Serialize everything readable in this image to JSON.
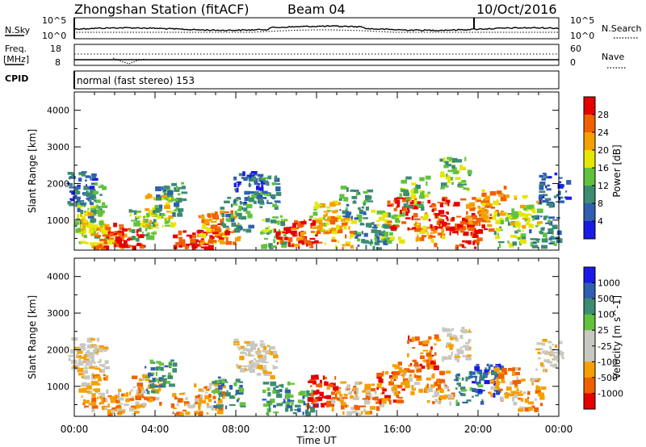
{
  "header": {
    "station": "Zhongshan Station (fitACF)",
    "beam": "Beam 04",
    "date": "10/Oct/2016"
  },
  "strip1": {
    "left_label": "N.Sky",
    "right_label": "N.Search",
    "left_ticks": [
      "10^5",
      "10^0"
    ],
    "right_ticks": [
      "10^5",
      "10^0"
    ]
  },
  "strip2": {
    "left_label_1": "Freq.",
    "left_label_2": "[MHz]",
    "right_label": "Nave",
    "left_ticks": [
      "18",
      "8"
    ],
    "right_ticks": [
      "60",
      "0"
    ]
  },
  "cpid": {
    "label": "CPID",
    "value": "normal (fast stereo) 153"
  },
  "axes": {
    "ylabel": "Slant Range [km]",
    "xlabel": "Time UT",
    "yticks": [
      "1000",
      "2000",
      "3000",
      "4000"
    ],
    "xticks": [
      "00:00",
      "04:00",
      "08:00",
      "12:00",
      "16:00",
      "20:00",
      "00:00"
    ]
  },
  "colors": {
    "power": [
      "#1a1ae6",
      "#2f5fb0",
      "#3c8c70",
      "#62c23e",
      "#e6e600",
      "#f5a000",
      "#f06000",
      "#e60000"
    ],
    "velocity": [
      "#e60000",
      "#f06000",
      "#f5a000",
      "#c8c8c0",
      "#c8c8c0",
      "#62c23e",
      "#3c8c70",
      "#2f5fb0",
      "#1a1ae6"
    ]
  },
  "chart_data": [
    {
      "type": "heatmap",
      "quantity": "Power",
      "x": [
        "00:00",
        "04:00",
        "08:00",
        "12:00",
        "16:00",
        "20:00",
        "00:00"
      ],
      "y": [
        1000,
        2000,
        3000,
        4000
      ],
      "ylim": [
        180,
        4500
      ],
      "colorbar_label": "Power [dB]",
      "colorbar_ticks": [
        "4",
        "8",
        "12",
        "16",
        "20",
        "24",
        "28"
      ],
      "colorbar_range": [
        0,
        30
      ],
      "patches": [
        {
          "t": 0.3,
          "r": 1900,
          "lvl": 1
        },
        {
          "t": 0.7,
          "r": 1600,
          "lvl": 2
        },
        {
          "t": 0.6,
          "r": 1000,
          "lvl": 3
        },
        {
          "t": 0.9,
          "r": 800,
          "lvl": 4
        },
        {
          "t": 1.4,
          "r": 350,
          "lvl": 5
        },
        {
          "t": 1.8,
          "r": 500,
          "lvl": 6
        },
        {
          "t": 2.6,
          "r": 350,
          "lvl": 7
        },
        {
          "t": 3.4,
          "r": 900,
          "lvl": 3
        },
        {
          "t": 4.1,
          "r": 1300,
          "lvl": 4
        },
        {
          "t": 4.6,
          "r": 1600,
          "lvl": 2
        },
        {
          "t": 5.5,
          "r": 280,
          "lvl": 7
        },
        {
          "t": 6.0,
          "r": 300,
          "lvl": 7
        },
        {
          "t": 6.8,
          "r": 800,
          "lvl": 5
        },
        {
          "t": 7.4,
          "r": 850,
          "lvl": 6
        },
        {
          "t": 7.9,
          "r": 1200,
          "lvl": 2
        },
        {
          "t": 8.6,
          "r": 1900,
          "lvl": 1
        },
        {
          "t": 9.3,
          "r": 1800,
          "lvl": 2
        },
        {
          "t": 9.9,
          "r": 700,
          "lvl": 3
        },
        {
          "t": 10.6,
          "r": 450,
          "lvl": 7
        },
        {
          "t": 11.4,
          "r": 600,
          "lvl": 6
        },
        {
          "t": 12.3,
          "r": 1100,
          "lvl": 4
        },
        {
          "t": 13.1,
          "r": 700,
          "lvl": 5
        },
        {
          "t": 13.8,
          "r": 1500,
          "lvl": 2
        },
        {
          "t": 14.6,
          "r": 500,
          "lvl": 2
        },
        {
          "t": 15.4,
          "r": 900,
          "lvl": 3
        },
        {
          "t": 16.2,
          "r": 1200,
          "lvl": 7
        },
        {
          "t": 16.8,
          "r": 1800,
          "lvl": 3
        },
        {
          "t": 17.5,
          "r": 800,
          "lvl": 5
        },
        {
          "t": 18.2,
          "r": 1200,
          "lvl": 7
        },
        {
          "t": 18.8,
          "r": 2300,
          "lvl": 3
        },
        {
          "t": 19.3,
          "r": 700,
          "lvl": 7
        },
        {
          "t": 19.8,
          "r": 1200,
          "lvl": 6
        },
        {
          "t": 20.6,
          "r": 1500,
          "lvl": 5
        },
        {
          "t": 21.5,
          "r": 800,
          "lvl": 3
        },
        {
          "t": 22.3,
          "r": 1300,
          "lvl": 4
        },
        {
          "t": 23.2,
          "r": 700,
          "lvl": 2
        },
        {
          "t": 23.7,
          "r": 1900,
          "lvl": 1
        }
      ]
    },
    {
      "type": "heatmap",
      "quantity": "Velocity",
      "x": [
        "00:00",
        "04:00",
        "08:00",
        "12:00",
        "16:00",
        "20:00",
        "00:00"
      ],
      "y": [
        1000,
        2000,
        3000,
        4000
      ],
      "ylim": [
        180,
        4500
      ],
      "colorbar_label": "Velocity [m s^-1]",
      "colorbar_ticks": [
        "1000",
        "500",
        "100",
        "25",
        "-25",
        "-100",
        "-500",
        "-1000"
      ],
      "patches": [
        {
          "t": 0.4,
          "r": 1900,
          "lvl": 3
        },
        {
          "t": 0.8,
          "r": 1700,
          "lvl": 3
        },
        {
          "t": 0.9,
          "r": 900,
          "lvl": 2
        },
        {
          "t": 1.5,
          "r": 400,
          "lvl": 2
        },
        {
          "t": 2.6,
          "r": 500,
          "lvl": 2
        },
        {
          "t": 3.5,
          "r": 900,
          "lvl": 2
        },
        {
          "t": 4.2,
          "r": 1300,
          "lvl": 6
        },
        {
          "t": 5.5,
          "r": 400,
          "lvl": 2
        },
        {
          "t": 6.6,
          "r": 700,
          "lvl": 2
        },
        {
          "t": 7.5,
          "r": 900,
          "lvl": 6
        },
        {
          "t": 8.6,
          "r": 1900,
          "lvl": 3
        },
        {
          "t": 9.3,
          "r": 1700,
          "lvl": 3
        },
        {
          "t": 10.0,
          "r": 700,
          "lvl": 6
        },
        {
          "t": 11.1,
          "r": 500,
          "lvl": 6
        },
        {
          "t": 12.2,
          "r": 900,
          "lvl": 0
        },
        {
          "t": 13.2,
          "r": 700,
          "lvl": 2
        },
        {
          "t": 14.5,
          "r": 700,
          "lvl": 2
        },
        {
          "t": 15.5,
          "r": 1000,
          "lvl": 1
        },
        {
          "t": 16.4,
          "r": 1300,
          "lvl": 2
        },
        {
          "t": 17.2,
          "r": 2000,
          "lvl": 1
        },
        {
          "t": 18.0,
          "r": 1000,
          "lvl": 2
        },
        {
          "t": 18.9,
          "r": 2200,
          "lvl": 3
        },
        {
          "t": 19.5,
          "r": 1000,
          "lvl": 6
        },
        {
          "t": 20.3,
          "r": 1200,
          "lvl": 7
        },
        {
          "t": 21.2,
          "r": 1100,
          "lvl": 2
        },
        {
          "t": 22.4,
          "r": 800,
          "lvl": 2
        },
        {
          "t": 23.5,
          "r": 1900,
          "lvl": 3
        }
      ]
    }
  ]
}
